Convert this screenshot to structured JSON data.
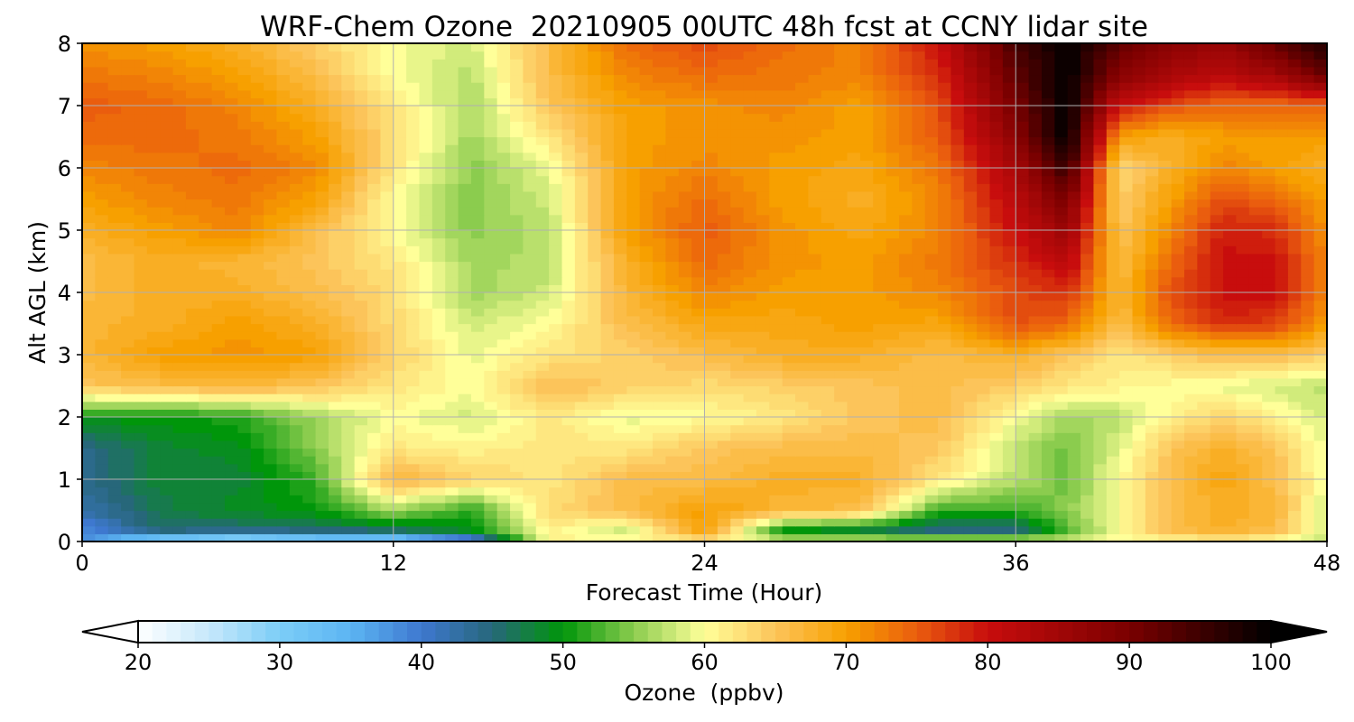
{
  "chart_data": {
    "type": "heatmap",
    "title": "WRF-Chem Ozone  20210905 00UTC 48h fcst at CCNY lidar site",
    "xlabel": "Forecast Time (Hour)",
    "ylabel": "Alt AGL (km)",
    "xlim": [
      0,
      48
    ],
    "ylim": [
      0,
      8
    ],
    "xticks": [
      0,
      12,
      24,
      36,
      48
    ],
    "yticks": [
      0,
      1,
      2,
      3,
      4,
      5,
      6,
      7,
      8
    ],
    "grid": true,
    "x": [
      0,
      3,
      6,
      9,
      12,
      15,
      18,
      21,
      24,
      27,
      30,
      33,
      36,
      38,
      40,
      42,
      44,
      46,
      48
    ],
    "y": [
      0,
      0.2,
      0.5,
      1,
      1.5,
      2,
      2.5,
      3,
      3.5,
      4,
      4.5,
      5,
      5.5,
      6,
      6.5,
      7,
      7.5,
      8
    ],
    "z": [
      [
        38,
        28,
        25,
        28,
        28,
        36,
        61,
        60,
        62,
        58,
        58,
        58,
        58,
        58,
        60,
        60,
        61,
        60,
        58
      ],
      [
        38,
        46,
        45,
        46,
        47,
        50,
        61,
        58,
        70,
        50,
        48,
        44,
        44,
        53,
        60,
        66,
        68,
        66,
        58
      ],
      [
        42,
        47,
        49,
        50,
        56,
        51,
        63,
        66,
        70,
        67,
        66,
        52,
        52,
        55,
        60,
        66,
        68,
        67,
        58
      ],
      [
        44,
        48,
        48,
        52,
        67,
        64,
        62,
        66,
        66,
        68,
        68,
        62,
        57,
        54,
        60,
        66,
        69,
        66,
        59
      ],
      [
        44,
        48,
        49,
        55,
        62,
        61,
        62,
        62,
        65,
        66,
        66,
        65,
        57,
        54,
        59,
        65,
        68,
        65,
        59
      ],
      [
        50,
        50,
        51,
        56,
        60,
        58,
        62,
        59,
        60,
        62,
        65,
        66,
        60,
        56,
        57,
        61,
        64,
        61,
        58
      ],
      [
        65,
        66,
        67,
        65,
        62,
        60,
        66,
        64,
        63,
        64,
        65,
        66,
        64,
        62,
        61,
        60,
        59,
        58,
        57
      ],
      [
        67,
        70,
        71,
        70,
        64,
        59,
        62,
        64,
        66,
        68,
        68,
        66,
        68,
        65,
        62,
        64,
        66,
        66,
        64
      ],
      [
        67,
        68,
        70,
        68,
        63,
        58,
        60,
        66,
        69,
        69,
        70,
        69,
        76,
        74,
        66,
        74,
        78,
        77,
        70
      ],
      [
        66,
        68,
        68,
        66,
        63,
        56,
        58,
        67,
        72,
        70,
        70,
        72,
        76,
        78,
        67,
        76,
        80,
        80,
        72
      ],
      [
        66,
        68,
        67,
        65,
        62,
        56,
        57,
        68,
        74,
        71,
        70,
        73,
        78,
        82,
        66,
        74,
        80,
        80,
        72
      ],
      [
        68,
        70,
        72,
        66,
        60,
        55,
        57,
        70,
        75,
        71,
        69,
        72,
        80,
        86,
        65,
        72,
        79,
        78,
        71
      ],
      [
        70,
        72,
        73,
        70,
        60,
        55,
        58,
        70,
        74,
        70,
        68,
        72,
        82,
        90,
        64,
        70,
        76,
        74,
        70
      ],
      [
        72,
        73,
        74,
        72,
        62,
        55,
        59,
        70,
        72,
        70,
        69,
        73,
        84,
        96,
        63,
        68,
        72,
        70,
        68
      ],
      [
        74,
        74,
        73,
        70,
        63,
        56,
        62,
        70,
        71,
        71,
        70,
        75,
        88,
        100,
        70,
        68,
        70,
        70,
        70
      ],
      [
        75,
        74,
        72,
        68,
        62,
        56,
        65,
        70,
        71,
        72,
        70,
        76,
        90,
        100,
        80,
        76,
        74,
        74,
        74
      ],
      [
        73,
        72,
        70,
        66,
        60,
        57,
        66,
        72,
        74,
        73,
        72,
        78,
        92,
        100,
        88,
        84,
        82,
        85,
        92
      ],
      [
        71,
        70,
        68,
        64,
        60,
        58,
        66,
        74,
        76,
        74,
        72,
        80,
        94,
        100,
        92,
        88,
        86,
        92,
        98
      ]
    ],
    "colorbar": {
      "label": "Ozone  (ppbv)",
      "min": 20,
      "max": 100,
      "ticks": [
        20,
        30,
        40,
        50,
        60,
        70,
        80,
        90,
        100
      ],
      "extend": "both",
      "placement": "bottom",
      "colors": [
        {
          "v": 20,
          "c": "#ffffff"
        },
        {
          "v": 25,
          "c": "#c6e8fb"
        },
        {
          "v": 30,
          "c": "#7ccdf7"
        },
        {
          "v": 35,
          "c": "#5cb5f2"
        },
        {
          "v": 40,
          "c": "#3e78cf"
        },
        {
          "v": 45,
          "c": "#27677a"
        },
        {
          "v": 50,
          "c": "#00960a"
        },
        {
          "v": 55,
          "c": "#8bcc4e"
        },
        {
          "v": 60,
          "c": "#ffff99"
        },
        {
          "v": 65,
          "c": "#fcc45a"
        },
        {
          "v": 70,
          "c": "#f7a000"
        },
        {
          "v": 75,
          "c": "#ea5d0e"
        },
        {
          "v": 80,
          "c": "#c80d0d"
        },
        {
          "v": 90,
          "c": "#7a0000"
        },
        {
          "v": 100,
          "c": "#000000"
        }
      ]
    }
  }
}
